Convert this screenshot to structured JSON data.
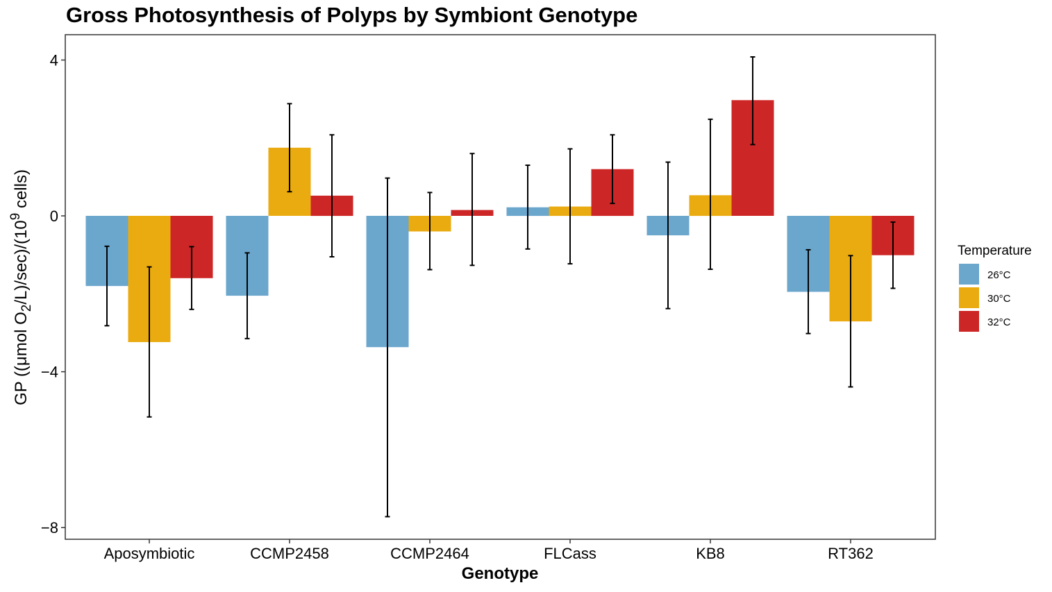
{
  "chart_data": {
    "type": "bar",
    "title": "Gross Photosynthesis of Polyps by Symbiont Genotype",
    "xlabel": "Genotype",
    "ylabel_parts": {
      "prefix": "GP ((μmol O",
      "o2_subscript": "2",
      "middle": "/L)/sec)/(10",
      "cells_superscript": "9",
      "suffix": " cells)"
    },
    "categories": [
      "Aposymbiotic",
      "CCMP2458",
      "CCMP2464",
      "FLCass",
      "KB8",
      "RT362"
    ],
    "ylim": [
      -8.3,
      4.65
    ],
    "yticks": [
      4,
      0,
      -4,
      -8
    ],
    "ytick_labels": [
      "4",
      "0",
      "−4",
      "−8"
    ],
    "grid": false,
    "legend": {
      "title": "Temperature",
      "position": "right"
    },
    "series": [
      {
        "name": "26°C",
        "color": "#6BA6CD",
        "values": [
          -1.8,
          -2.05,
          -3.37,
          0.22,
          -0.5,
          -1.95
        ],
        "err_low": [
          -2.82,
          -3.15,
          -7.72,
          -0.85,
          -2.38,
          -3.02
        ],
        "err_high": [
          -0.78,
          -0.95,
          0.97,
          1.3,
          1.38,
          -0.87
        ]
      },
      {
        "name": "30°C",
        "color": "#EAAB11",
        "values": [
          -3.24,
          1.75,
          -0.4,
          0.24,
          0.53,
          -2.71
        ],
        "err_low": [
          -5.16,
          0.62,
          -1.38,
          -1.23,
          -1.37,
          -4.39
        ],
        "err_high": [
          -1.31,
          2.88,
          0.6,
          1.72,
          2.48,
          -1.02
        ]
      },
      {
        "name": "32°C",
        "color": "#CD2626",
        "values": [
          -1.6,
          0.52,
          0.15,
          1.2,
          2.97,
          -1.01
        ],
        "err_low": [
          -2.4,
          -1.05,
          -1.27,
          0.32,
          1.83,
          -1.86
        ],
        "err_high": [
          -0.79,
          2.08,
          1.6,
          2.08,
          4.08,
          -0.16
        ]
      }
    ]
  }
}
